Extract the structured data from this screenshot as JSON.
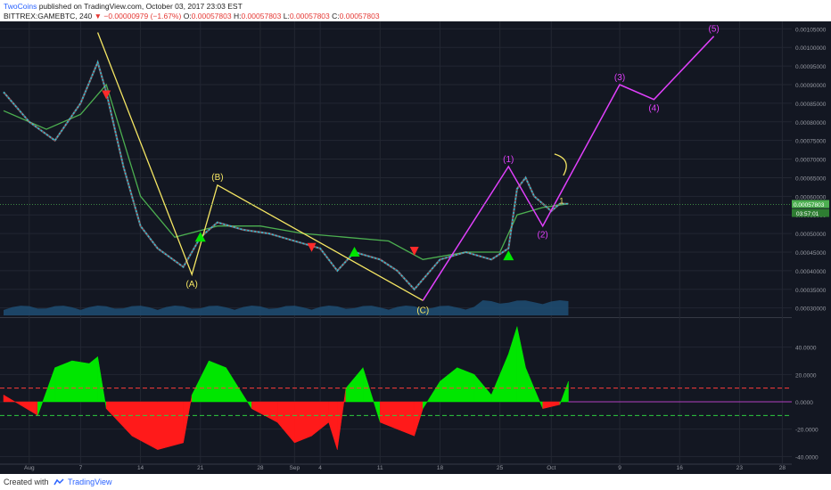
{
  "header": {
    "user": "TwoCoins",
    "published": "published on TradingView.com, October 03, 2017 23:03 EST",
    "symbol": "BITTREX:GAMEBTC, 240",
    "change": "▼ −0.00000979 (−1.67%)",
    "o_label": "O:",
    "o_value": "0.00057803",
    "h_label": "H:",
    "h_value": "0.00057803",
    "l_label": "L:",
    "l_value": "0.00057803",
    "c_label": "C:",
    "c_value": "0.00057803"
  },
  "footer": {
    "created": "Created with",
    "brand": "TradingView"
  },
  "colors": {
    "background": "#131722",
    "grid": "#232732",
    "price_line": "#26c6da",
    "envelope": "#4caf50",
    "abc_lines": "#f5e663",
    "impulse": "#e040fb",
    "osc_up": "#00e600",
    "osc_down": "#ff1a1a",
    "volume": "#1e4d73",
    "band_upper": "#ff3b3b",
    "band_lower": "#2ecc40"
  },
  "chart_data": [
    {
      "type": "line",
      "panel": "price",
      "y_axis": {
        "range": [
          0.00028,
          0.00107
        ],
        "ticks": [
          "0.00105000",
          "0.00100000",
          "0.00095000",
          "0.00090000",
          "0.00085000",
          "0.00080000",
          "0.00075000",
          "0.00070000",
          "0.00065000",
          "0.00060000",
          "0.00055000",
          "0.00050000",
          "0.00045000",
          "0.00040000",
          "0.00035000",
          "0.00030000"
        ]
      },
      "x_axis": {
        "ticks": [
          "Aug",
          "7",
          "14",
          "21",
          "28",
          "Sep",
          "4",
          "11",
          "18",
          "25",
          "Oct",
          "9",
          "16",
          "23",
          "28"
        ],
        "range": [
          "2017-07-29",
          "2017-10-29"
        ]
      },
      "series": [
        {
          "role": "price",
          "x": [
            "2017-07-29",
            "2017-08-01",
            "2017-08-04",
            "2017-08-07",
            "2017-08-09",
            "2017-08-10",
            "2017-08-12",
            "2017-08-14",
            "2017-08-16",
            "2017-08-19",
            "2017-08-21",
            "2017-08-23",
            "2017-08-26",
            "2017-08-29",
            "2017-09-01",
            "2017-09-04",
            "2017-09-06",
            "2017-09-08",
            "2017-09-11",
            "2017-09-13",
            "2017-09-15",
            "2017-09-18",
            "2017-09-21",
            "2017-09-24",
            "2017-09-26",
            "2017-09-27",
            "2017-09-28",
            "2017-09-29",
            "2017-10-01",
            "2017-10-02",
            "2017-10-03"
          ],
          "values": [
            0.00088,
            0.0008,
            0.00075,
            0.00085,
            0.00096,
            0.00088,
            0.00068,
            0.00052,
            0.00046,
            0.00041,
            0.00049,
            0.00053,
            0.00051,
            0.0005,
            0.00048,
            0.00046,
            0.0004,
            0.00045,
            0.00043,
            0.0004,
            0.00035,
            0.00043,
            0.00045,
            0.00043,
            0.00046,
            0.00062,
            0.00065,
            0.0006,
            0.00056,
            0.00058,
            0.00058
          ]
        },
        {
          "role": "envelope",
          "x": [
            "2017-07-29",
            "2017-08-03",
            "2017-08-07",
            "2017-08-10",
            "2017-08-14",
            "2017-08-18",
            "2017-08-23",
            "2017-08-28",
            "2017-09-02",
            "2017-09-07",
            "2017-09-12",
            "2017-09-16",
            "2017-09-21",
            "2017-09-25",
            "2017-09-27",
            "2017-09-30",
            "2017-10-03"
          ],
          "values": [
            0.00083,
            0.00078,
            0.00082,
            0.0009,
            0.0006,
            0.00049,
            0.00052,
            0.00052,
            0.0005,
            0.00049,
            0.00048,
            0.00043,
            0.00045,
            0.00045,
            0.00055,
            0.00057,
            0.00058
          ]
        }
      ],
      "annotations": {
        "abc": [
          {
            "x": "2017-08-09",
            "y": 0.00104
          },
          {
            "x": "2017-08-20",
            "y": 0.00039,
            "label": "(A)"
          },
          {
            "x": "2017-08-23",
            "y": 0.00063,
            "label": "(B)"
          },
          {
            "x": "2017-09-16",
            "y": 0.00032,
            "label": "(C)"
          }
        ],
        "impulse": [
          {
            "x": "2017-09-16",
            "y": 0.00032
          },
          {
            "x": "2017-09-26",
            "y": 0.00068,
            "label": "(1)"
          },
          {
            "x": "2017-09-30",
            "y": 0.00052,
            "label": "(2)"
          },
          {
            "x": "2017-10-09",
            "y": 0.0009,
            "label": "(3)"
          },
          {
            "x": "2017-10-13",
            "y": 0.00086,
            "label": "(4)"
          },
          {
            "x": "2017-10-20",
            "y": 0.00103,
            "label": "(5)"
          }
        ],
        "arc_label": "1",
        "last_price_label": "0.00057803",
        "countdown_label": "03:57:01"
      }
    },
    {
      "type": "area",
      "panel": "oscillator",
      "y_axis": {
        "range": [
          -45,
          60
        ],
        "ticks": [
          "40.0000",
          "20.0000",
          "0.0000",
          "-20.0000",
          "-40.0000"
        ]
      },
      "x": [
        "2017-07-29",
        "2017-08-02",
        "2017-08-04",
        "2017-08-06",
        "2017-08-08",
        "2017-08-09",
        "2017-08-10",
        "2017-08-13",
        "2017-08-16",
        "2017-08-19",
        "2017-08-20",
        "2017-08-22",
        "2017-08-24",
        "2017-08-27",
        "2017-08-30",
        "2017-09-01",
        "2017-09-03",
        "2017-09-05",
        "2017-09-06",
        "2017-09-07",
        "2017-09-09",
        "2017-09-11",
        "2017-09-13",
        "2017-09-15",
        "2017-09-16",
        "2017-09-18",
        "2017-09-20",
        "2017-09-22",
        "2017-09-24",
        "2017-09-26",
        "2017-09-27",
        "2017-09-28",
        "2017-09-30",
        "2017-10-02",
        "2017-10-03"
      ],
      "values": [
        5,
        -10,
        25,
        30,
        28,
        33,
        -5,
        -25,
        -35,
        -30,
        5,
        30,
        25,
        -5,
        -15,
        -30,
        -25,
        -15,
        -35,
        10,
        25,
        -15,
        -20,
        -25,
        -5,
        15,
        25,
        20,
        5,
        35,
        55,
        25,
        -5,
        -2,
        15
      ],
      "bands": {
        "upper": 10,
        "lower": -10
      }
    }
  ]
}
